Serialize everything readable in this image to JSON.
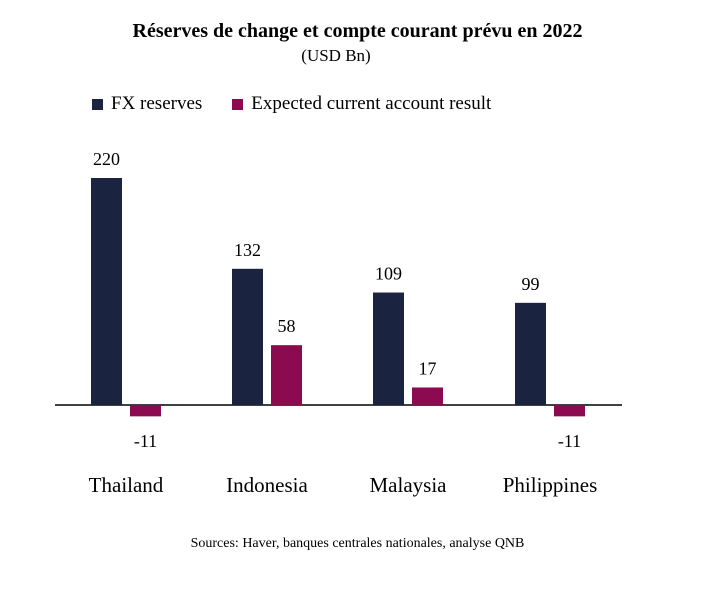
{
  "chart_data": {
    "type": "bar",
    "title": "Réserves de change et compte courant prévu en 2022",
    "subtitle": "(USD Bn)",
    "categories": [
      "Thailand",
      "Indonesia",
      "Malaysia",
      "Philippines"
    ],
    "series": [
      {
        "name": "FX reserves",
        "color": "#1a2340",
        "values": [
          220,
          132,
          109,
          99
        ]
      },
      {
        "name": "Expected current account result",
        "color": "#8c0a4f",
        "values": [
          -11,
          58,
          17,
          -11
        ]
      }
    ],
    "value_labels": {
      "FX reserves": [
        "220",
        "132",
        "109",
        "99"
      ],
      "Expected current account result": [
        "-11",
        "58",
        "17",
        "-11"
      ]
    },
    "ylim": [
      -11,
      220
    ],
    "grid": false,
    "legend_position": "top"
  },
  "source": "Sources: Haver, banques centrales nationales, analyse QNB"
}
